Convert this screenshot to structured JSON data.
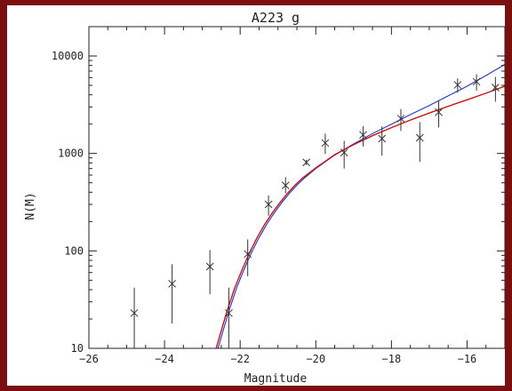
{
  "chart_data": {
    "type": "scatter",
    "title": "A223 g",
    "xlabel": "Magnitude",
    "ylabel": "N(M)",
    "xlim": [
      -26,
      -15
    ],
    "ylim": [
      10,
      20000
    ],
    "y_scale": "log",
    "x_ticks": [
      -26,
      -24,
      -22,
      -20,
      -18,
      -16
    ],
    "x_tick_labels": [
      "−26",
      "−24",
      "−22",
      "−20",
      "−18",
      "−16"
    ],
    "y_ticks": [
      10,
      100,
      1000,
      10000
    ],
    "y_tick_labels": [
      "10",
      "100",
      "1000",
      "10000"
    ],
    "grid": false,
    "points": [
      {
        "x": -24.8,
        "y": 23,
        "lo": 10,
        "hi": 42
      },
      {
        "x": -23.8,
        "y": 46,
        "lo": 18,
        "hi": 73
      },
      {
        "x": -22.8,
        "y": 69,
        "lo": 36,
        "hi": 102
      },
      {
        "x": -22.3,
        "y": 23,
        "lo": 10,
        "hi": 42
      },
      {
        "x": -21.8,
        "y": 93,
        "lo": 55,
        "hi": 131
      },
      {
        "x": -21.25,
        "y": 300,
        "lo": 230,
        "hi": 370
      },
      {
        "x": -20.8,
        "y": 470,
        "lo": 390,
        "hi": 570
      },
      {
        "x": -20.25,
        "y": 810,
        "lo": 760,
        "hi": 860
      },
      {
        "x": -19.75,
        "y": 1280,
        "lo": 990,
        "hi": 1600
      },
      {
        "x": -19.25,
        "y": 1020,
        "lo": 700,
        "hi": 1350
      },
      {
        "x": -18.75,
        "y": 1550,
        "lo": 1180,
        "hi": 1900
      },
      {
        "x": -18.25,
        "y": 1420,
        "lo": 950,
        "hi": 1900
      },
      {
        "x": -17.75,
        "y": 2280,
        "lo": 1700,
        "hi": 2850
      },
      {
        "x": -17.25,
        "y": 1450,
        "lo": 820,
        "hi": 2100
      },
      {
        "x": -16.75,
        "y": 2650,
        "lo": 1850,
        "hi": 3450
      },
      {
        "x": -16.25,
        "y": 5050,
        "lo": 4200,
        "hi": 5900
      },
      {
        "x": -15.75,
        "y": 5450,
        "lo": 4400,
        "hi": 6500
      },
      {
        "x": -15.25,
        "y": 4750,
        "lo": 3400,
        "hi": 6100
      }
    ],
    "series": [
      {
        "color": "#2233cc",
        "x": [
          -22.7,
          -22.5,
          -22.3,
          -22.1,
          -21.9,
          -21.7,
          -21.5,
          -21.3,
          -21.1,
          -20.9,
          -20.7,
          -20.5,
          -20.3,
          -20.0,
          -19.5,
          -19.0,
          -18.5,
          -18.0,
          -17.5,
          -17.0,
          -16.5,
          -16.0,
          -15.5,
          -15.0
        ],
        "y": [
          7,
          13,
          24,
          41,
          64,
          96,
          137,
          187,
          245,
          313,
          389,
          472,
          560,
          700,
          960,
          1250,
          1600,
          2000,
          2500,
          3100,
          3900,
          4900,
          6300,
          8200
        ]
      },
      {
        "color": "#cc1111",
        "x": [
          -22.75,
          -22.55,
          -22.35,
          -22.15,
          -21.95,
          -21.75,
          -21.55,
          -21.35,
          -21.15,
          -20.95,
          -20.75,
          -20.55,
          -20.35,
          -20.0,
          -19.5,
          -19.0,
          -18.5,
          -18.0,
          -17.5,
          -17.0,
          -16.5,
          -16.0,
          -15.5,
          -15.0
        ],
        "y": [
          7,
          13,
          24,
          41,
          64,
          96,
          137,
          187,
          245,
          313,
          389,
          472,
          560,
          710,
          970,
          1230,
          1520,
          1840,
          2200,
          2600,
          3050,
          3550,
          4150,
          4900
        ]
      }
    ],
    "colors": {
      "data": "#333333",
      "frame": "#222222",
      "background": "#7a0f0f"
    }
  }
}
